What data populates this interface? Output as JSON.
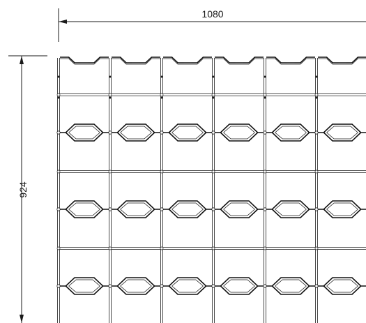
{
  "drawing": {
    "width_label": "1080",
    "height_label": "924"
  },
  "colors": {
    "line": "#1a1a1a",
    "background": "#ffffff"
  }
}
